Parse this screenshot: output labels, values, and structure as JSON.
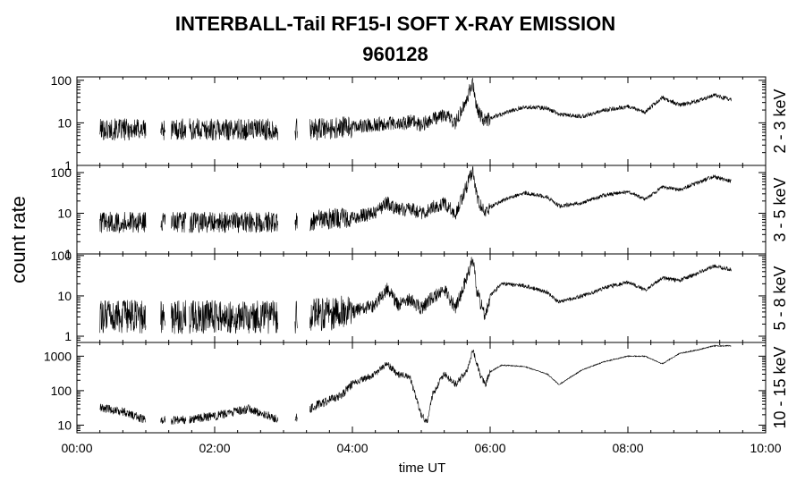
{
  "chart_data": {
    "type": "line",
    "title": "INTERBALL-Tail RF15-I SOFT X-RAY EMISSION",
    "subtitle": "960128",
    "xlabel": "time UT",
    "ylabel": "count rate",
    "x_range": [
      "00:00",
      "10:00"
    ],
    "x_ticks": [
      "00:00",
      "02:00",
      "04:00",
      "06:00",
      "08:00",
      "10:00"
    ],
    "y_scale": "log",
    "grid": false,
    "data_gaps": [
      [
        "01:00",
        "01:13"
      ],
      [
        "01:17",
        "01:22"
      ],
      [
        "01:35",
        "01:38"
      ],
      [
        "02:55",
        "03:10"
      ],
      [
        "03:12",
        "03:23"
      ]
    ],
    "panels": [
      {
        "label": "2 - 3 keV",
        "ylim": [
          1,
          120
        ],
        "y_ticks": [
          "1",
          "10",
          "100"
        ],
        "x": [
          "00:20",
          "00:40",
          "01:00",
          "01:30",
          "02:00",
          "02:30",
          "02:55",
          "03:10",
          "03:30",
          "04:00",
          "04:20",
          "04:30",
          "04:40",
          "04:50",
          "05:00",
          "05:10",
          "05:20",
          "05:30",
          "05:40",
          "05:45",
          "05:48",
          "05:52",
          "05:56",
          "06:00",
          "06:10",
          "06:30",
          "06:50",
          "07:00",
          "07:20",
          "07:40",
          "08:00",
          "08:15",
          "08:30",
          "08:45",
          "09:00",
          "09:15",
          "09:30"
        ],
        "values": [
          7,
          7,
          7,
          7,
          7,
          7,
          7,
          7,
          7,
          8,
          9,
          10,
          9,
          11,
          9,
          12,
          16,
          10,
          40,
          90,
          25,
          14,
          11,
          13,
          16,
          24,
          22,
          16,
          14,
          20,
          24,
          18,
          40,
          26,
          32,
          45,
          35
        ]
      },
      {
        "label": "3 - 5 keV",
        "ylim": [
          1,
          150
        ],
        "y_ticks": [
          "1",
          "10",
          "100"
        ],
        "x": [
          "00:20",
          "00:40",
          "01:00",
          "01:30",
          "02:00",
          "02:30",
          "02:55",
          "03:10",
          "03:30",
          "04:00",
          "04:20",
          "04:30",
          "04:40",
          "04:50",
          "05:00",
          "05:10",
          "05:20",
          "05:30",
          "05:40",
          "05:45",
          "05:48",
          "05:52",
          "05:56",
          "06:00",
          "06:10",
          "06:30",
          "06:50",
          "07:00",
          "07:20",
          "07:40",
          "08:00",
          "08:15",
          "08:30",
          "08:45",
          "09:00",
          "09:15",
          "09:30"
        ],
        "values": [
          6,
          6,
          6,
          6,
          6,
          6,
          6,
          6,
          7,
          8,
          10,
          18,
          12,
          13,
          10,
          14,
          18,
          10,
          50,
          120,
          30,
          15,
          10,
          14,
          20,
          32,
          25,
          15,
          18,
          28,
          34,
          22,
          45,
          38,
          55,
          80,
          60
        ]
      },
      {
        "label": "5 - 8 keV",
        "ylim": [
          0.7,
          110
        ],
        "y_ticks": [
          "1",
          "10",
          "100"
        ],
        "x": [
          "00:20",
          "00:40",
          "01:00",
          "01:30",
          "02:00",
          "02:30",
          "02:55",
          "03:10",
          "03:30",
          "04:00",
          "04:20",
          "04:30",
          "04:40",
          "04:50",
          "05:00",
          "05:10",
          "05:20",
          "05:30",
          "05:40",
          "05:45",
          "05:48",
          "05:52",
          "05:56",
          "06:00",
          "06:10",
          "06:30",
          "06:50",
          "07:00",
          "07:20",
          "07:40",
          "08:00",
          "08:15",
          "08:30",
          "08:45",
          "09:00",
          "09:15",
          "09:30"
        ],
        "values": [
          3,
          3,
          3,
          3,
          3,
          3,
          3,
          3,
          3.5,
          4,
          6,
          15,
          6,
          8,
          5,
          9,
          14,
          5,
          30,
          80,
          16,
          6,
          3,
          10,
          20,
          18,
          12,
          7,
          10,
          16,
          22,
          14,
          28,
          24,
          36,
          55,
          45
        ]
      },
      {
        "label": "10 - 15 keV",
        "ylim": [
          6,
          2500
        ],
        "y_ticks": [
          "10",
          "100",
          "1000"
        ],
        "x": [
          "00:20",
          "00:40",
          "01:00",
          "01:30",
          "02:00",
          "02:30",
          "02:55",
          "03:10",
          "03:30",
          "03:50",
          "04:00",
          "04:20",
          "04:30",
          "04:40",
          "04:50",
          "05:00",
          "05:05",
          "05:10",
          "05:20",
          "05:30",
          "05:40",
          "05:45",
          "05:48",
          "05:52",
          "05:56",
          "06:00",
          "06:10",
          "06:30",
          "06:50",
          "07:00",
          "07:20",
          "07:40",
          "08:00",
          "08:15",
          "08:30",
          "08:45",
          "09:00",
          "09:15",
          "09:30"
        ],
        "values": [
          32,
          25,
          14,
          14,
          18,
          30,
          15,
          15,
          40,
          70,
          160,
          300,
          600,
          300,
          250,
          20,
          12,
          80,
          300,
          150,
          400,
          1500,
          700,
          250,
          150,
          350,
          550,
          500,
          300,
          150,
          400,
          700,
          1000,
          1000,
          600,
          1200,
          1500,
          2000,
          2000
        ]
      }
    ]
  }
}
